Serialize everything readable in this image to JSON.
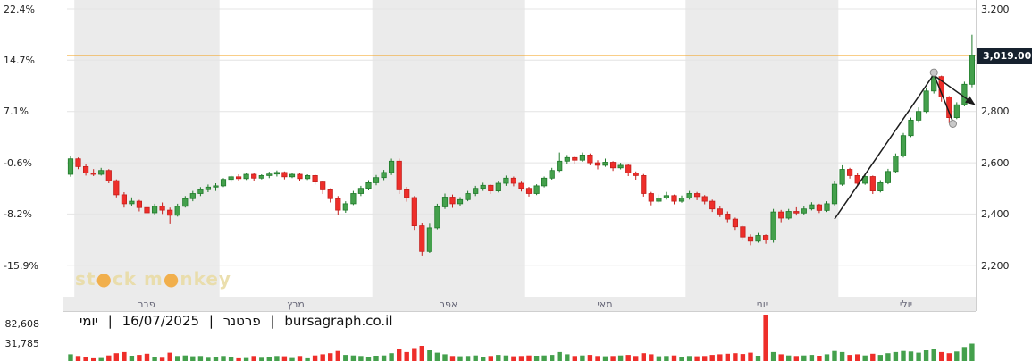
{
  "left_axis": {
    "labels": [
      "22.4%",
      "14.7%",
      "7.1%",
      "-0.6%",
      "-8.2%",
      "-15.9%"
    ]
  },
  "right_axis": {
    "labels": [
      "3,200",
      "2,800",
      "2,600",
      "2,400",
      "2,200"
    ],
    "price_tag": "3,019.00"
  },
  "volume_axis": {
    "labels": [
      "82,608",
      "31,785"
    ]
  },
  "caption": {
    "part_daily": "יומי",
    "separator": "|",
    "part_date": "16/07/2025",
    "part_name": "פרטנר",
    "part_site": "bursagraph.co.il"
  },
  "watermark": {
    "t1": "st",
    "dot": "●",
    "t2": "ck m",
    "t3": "nkey"
  },
  "colors": {
    "up": "#44a04c",
    "up_border": "#1f7a2a",
    "down": "#ee2e2a",
    "down_border": "#c41f1c",
    "stripe": "#ebebeb",
    "grid": "#e4e4e4",
    "reference": "#f39c12",
    "annotation": "#1b1b1b",
    "marker_fill": "#c9c9c9",
    "marker_border": "#8a8a8a",
    "tag_bg": "#16212e"
  },
  "chart_data": {
    "type": "candlestick",
    "title": "פרטנר",
    "interval": "יומי",
    "date": "16/07/2025",
    "source": "bursagraph.co.il",
    "last_price": 3019.0,
    "ylim": [
      2078,
      3235
    ],
    "y_axis_price_ticks": [
      3200,
      3000,
      2800,
      2600,
      2400,
      2200
    ],
    "y_axis_pct_ticks": [
      22.4,
      14.7,
      7.1,
      -0.6,
      -8.2,
      -15.9
    ],
    "volume_ticks": [
      82608,
      31785
    ],
    "reference_line": {
      "price": 3019,
      "label": "3,019.00"
    },
    "months": [
      {
        "label": "פבר",
        "start": 1
      },
      {
        "label": "מרץ",
        "start": 20
      },
      {
        "label": "אפר",
        "start": 40
      },
      {
        "label": "מאי",
        "start": 60
      },
      {
        "label": "יוני",
        "start": 81
      },
      {
        "label": "יולי",
        "start": 101
      }
    ],
    "ohlc": [
      [
        2555,
        2625,
        2545,
        2615
      ],
      [
        2615,
        2620,
        2575,
        2585
      ],
      [
        2585,
        2595,
        2550,
        2560
      ],
      [
        2560,
        2575,
        2548,
        2555
      ],
      [
        2555,
        2580,
        2550,
        2570
      ],
      [
        2570,
        2575,
        2520,
        2530
      ],
      [
        2530,
        2535,
        2465,
        2475
      ],
      [
        2475,
        2485,
        2425,
        2440
      ],
      [
        2440,
        2465,
        2430,
        2450
      ],
      [
        2450,
        2455,
        2410,
        2425
      ],
      [
        2425,
        2435,
        2385,
        2405
      ],
      [
        2405,
        2440,
        2395,
        2430
      ],
      [
        2430,
        2445,
        2400,
        2415
      ],
      [
        2415,
        2425,
        2360,
        2395
      ],
      [
        2395,
        2440,
        2390,
        2430
      ],
      [
        2430,
        2470,
        2425,
        2460
      ],
      [
        2460,
        2490,
        2450,
        2480
      ],
      [
        2480,
        2505,
        2470,
        2495
      ],
      [
        2495,
        2515,
        2485,
        2505
      ],
      [
        2505,
        2520,
        2490,
        2510
      ],
      [
        2510,
        2540,
        2505,
        2535
      ],
      [
        2535,
        2550,
        2525,
        2545
      ],
      [
        2545,
        2555,
        2528,
        2538
      ],
      [
        2538,
        2560,
        2533,
        2555
      ],
      [
        2555,
        2560,
        2530,
        2540
      ],
      [
        2540,
        2555,
        2535,
        2550
      ],
      [
        2550,
        2565,
        2540,
        2556
      ],
      [
        2556,
        2570,
        2546,
        2562
      ],
      [
        2562,
        2566,
        2535,
        2545
      ],
      [
        2545,
        2560,
        2540,
        2555
      ],
      [
        2555,
        2560,
        2528,
        2538
      ],
      [
        2538,
        2555,
        2533,
        2550
      ],
      [
        2550,
        2555,
        2515,
        2525
      ],
      [
        2525,
        2530,
        2478,
        2494
      ],
      [
        2494,
        2500,
        2445,
        2460
      ],
      [
        2460,
        2470,
        2398,
        2415
      ],
      [
        2415,
        2450,
        2405,
        2440
      ],
      [
        2440,
        2490,
        2435,
        2480
      ],
      [
        2480,
        2510,
        2470,
        2500
      ],
      [
        2500,
        2532,
        2492,
        2522
      ],
      [
        2522,
        2552,
        2512,
        2542
      ],
      [
        2542,
        2572,
        2532,
        2562
      ],
      [
        2562,
        2616,
        2552,
        2606
      ],
      [
        2606,
        2616,
        2478,
        2494
      ],
      [
        2494,
        2506,
        2448,
        2464
      ],
      [
        2464,
        2470,
        2338,
        2354
      ],
      [
        2354,
        2366,
        2238,
        2254
      ],
      [
        2254,
        2362,
        2248,
        2346
      ],
      [
        2346,
        2440,
        2340,
        2428
      ],
      [
        2428,
        2480,
        2420,
        2466
      ],
      [
        2466,
        2476,
        2424,
        2440
      ],
      [
        2440,
        2466,
        2430,
        2456
      ],
      [
        2456,
        2490,
        2450,
        2480
      ],
      [
        2480,
        2510,
        2470,
        2500
      ],
      [
        2500,
        2522,
        2490,
        2512
      ],
      [
        2512,
        2516,
        2478,
        2490
      ],
      [
        2490,
        2530,
        2484,
        2520
      ],
      [
        2520,
        2550,
        2510,
        2540
      ],
      [
        2540,
        2546,
        2508,
        2520
      ],
      [
        2520,
        2526,
        2488,
        2500
      ],
      [
        2500,
        2506,
        2468,
        2480
      ],
      [
        2480,
        2516,
        2474,
        2510
      ],
      [
        2510,
        2546,
        2504,
        2540
      ],
      [
        2540,
        2580,
        2534,
        2570
      ],
      [
        2570,
        2640,
        2564,
        2606
      ],
      [
        2606,
        2630,
        2596,
        2620
      ],
      [
        2620,
        2626,
        2594,
        2610
      ],
      [
        2610,
        2640,
        2604,
        2630
      ],
      [
        2630,
        2636,
        2590,
        2600
      ],
      [
        2600,
        2610,
        2574,
        2590
      ],
      [
        2590,
        2616,
        2584,
        2602
      ],
      [
        2602,
        2606,
        2568,
        2580
      ],
      [
        2580,
        2600,
        2574,
        2590
      ],
      [
        2590,
        2596,
        2548,
        2560
      ],
      [
        2560,
        2566,
        2534,
        2550
      ],
      [
        2550,
        2556,
        2468,
        2480
      ],
      [
        2480,
        2486,
        2434,
        2450
      ],
      [
        2450,
        2476,
        2444,
        2462
      ],
      [
        2462,
        2486,
        2456,
        2472
      ],
      [
        2472,
        2476,
        2438,
        2450
      ],
      [
        2450,
        2472,
        2444,
        2462
      ],
      [
        2462,
        2490,
        2456,
        2480
      ],
      [
        2480,
        2486,
        2454,
        2468
      ],
      [
        2468,
        2474,
        2438,
        2450
      ],
      [
        2450,
        2456,
        2408,
        2420
      ],
      [
        2420,
        2430,
        2388,
        2400
      ],
      [
        2400,
        2410,
        2368,
        2380
      ],
      [
        2380,
        2386,
        2338,
        2350
      ],
      [
        2350,
        2356,
        2298,
        2310
      ],
      [
        2310,
        2320,
        2278,
        2294
      ],
      [
        2294,
        2326,
        2288,
        2316
      ],
      [
        2316,
        2320,
        2284,
        2298
      ],
      [
        2298,
        2420,
        2288,
        2408
      ],
      [
        2408,
        2416,
        2368,
        2384
      ],
      [
        2384,
        2420,
        2378,
        2410
      ],
      [
        2410,
        2426,
        2394,
        2404
      ],
      [
        2404,
        2430,
        2398,
        2420
      ],
      [
        2420,
        2446,
        2414,
        2436
      ],
      [
        2436,
        2440,
        2404,
        2414
      ],
      [
        2414,
        2450,
        2408,
        2440
      ],
      [
        2440,
        2530,
        2434,
        2516
      ],
      [
        2516,
        2590,
        2510,
        2574
      ],
      [
        2574,
        2580,
        2538,
        2550
      ],
      [
        2550,
        2560,
        2508,
        2520
      ],
      [
        2520,
        2556,
        2514,
        2546
      ],
      [
        2546,
        2550,
        2478,
        2490
      ],
      [
        2490,
        2532,
        2484,
        2522
      ],
      [
        2522,
        2576,
        2516,
        2566
      ],
      [
        2566,
        2636,
        2560,
        2626
      ],
      [
        2626,
        2716,
        2620,
        2706
      ],
      [
        2706,
        2776,
        2700,
        2766
      ],
      [
        2766,
        2816,
        2756,
        2800
      ],
      [
        2800,
        2890,
        2794,
        2880
      ],
      [
        2880,
        2946,
        2870,
        2936
      ],
      [
        2936,
        2940,
        2838,
        2856
      ],
      [
        2856,
        2860,
        2754,
        2776
      ],
      [
        2776,
        2836,
        2770,
        2826
      ],
      [
        2826,
        2916,
        2820,
        2906
      ],
      [
        2906,
        3100,
        2894,
        3019
      ]
    ],
    "volume": [
      12000,
      9000,
      8000,
      6500,
      7000,
      10000,
      14000,
      16000,
      9500,
      11000,
      13000,
      8000,
      7500,
      15000,
      9000,
      10000,
      8500,
      9000,
      7500,
      8000,
      9000,
      8000,
      6500,
      7000,
      9000,
      7500,
      8000,
      9000,
      8500,
      7000,
      9000,
      6500,
      10000,
      12000,
      14000,
      18000,
      11000,
      10000,
      9000,
      8000,
      9500,
      10000,
      14000,
      21000,
      16000,
      23000,
      27000,
      19000,
      15000,
      12000,
      9000,
      8500,
      9000,
      10000,
      8000,
      9000,
      11000,
      10000,
      8500,
      9000,
      10000,
      9500,
      10000,
      11000,
      16000,
      12000,
      9000,
      10000,
      11000,
      9000,
      8500,
      9000,
      10000,
      11000,
      9000,
      14000,
      12000,
      8500,
      9000,
      10000,
      8000,
      9000,
      8500,
      9000,
      11000,
      12000,
      13000,
      14000,
      12500,
      15000,
      9500,
      82608,
      16000,
      12000,
      10000,
      9000,
      10000,
      11000,
      9500,
      12000,
      18000,
      16000,
      11000,
      12000,
      10000,
      13000,
      11000,
      14000,
      16000,
      18000,
      17000,
      15000,
      19000,
      21000,
      16000,
      14000,
      17000,
      25000,
      31000
    ],
    "annotations": {
      "trendlines": [
        [
          [
            100,
            2380
          ],
          [
            113,
            2945
          ]
        ],
        [
          [
            113,
            2945
          ],
          [
            115.5,
            2760
          ]
        ]
      ],
      "arrow": [
        [
          113.3,
          2935
        ],
        [
          118.3,
          2828
        ]
      ],
      "markers": [
        [
          113,
          2952
        ],
        [
          115.5,
          2752
        ]
      ]
    }
  }
}
